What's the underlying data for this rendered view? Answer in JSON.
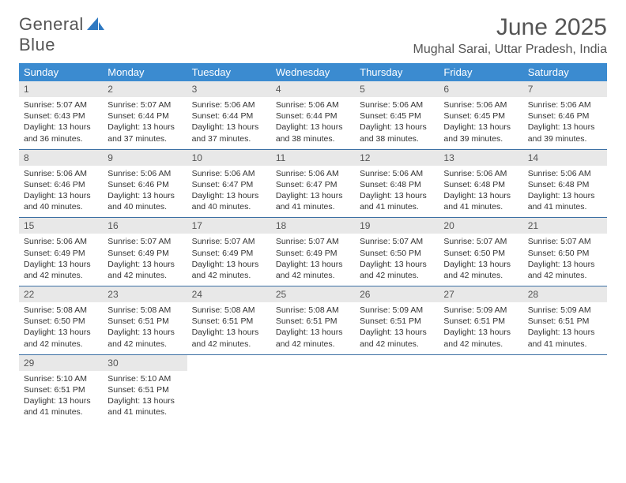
{
  "logo": {
    "text_a": "General",
    "text_b": "Blue"
  },
  "title": "June 2025",
  "location": "Mughal Sarai, Uttar Pradesh, India",
  "colors": {
    "header_bg": "#3b8bd0",
    "header_text": "#ffffff",
    "daynum_bg": "#e8e8e8",
    "row_border": "#3b6fa3",
    "text": "#333333",
    "title_text": "#555555",
    "logo_blue": "#2f79c2"
  },
  "day_names": [
    "Sunday",
    "Monday",
    "Tuesday",
    "Wednesday",
    "Thursday",
    "Friday",
    "Saturday"
  ],
  "weeks": [
    [
      {
        "n": "1",
        "sunrise": "5:07 AM",
        "sunset": "6:43 PM",
        "daylight": "13 hours and 36 minutes."
      },
      {
        "n": "2",
        "sunrise": "5:07 AM",
        "sunset": "6:44 PM",
        "daylight": "13 hours and 37 minutes."
      },
      {
        "n": "3",
        "sunrise": "5:06 AM",
        "sunset": "6:44 PM",
        "daylight": "13 hours and 37 minutes."
      },
      {
        "n": "4",
        "sunrise": "5:06 AM",
        "sunset": "6:44 PM",
        "daylight": "13 hours and 38 minutes."
      },
      {
        "n": "5",
        "sunrise": "5:06 AM",
        "sunset": "6:45 PM",
        "daylight": "13 hours and 38 minutes."
      },
      {
        "n": "6",
        "sunrise": "5:06 AM",
        "sunset": "6:45 PM",
        "daylight": "13 hours and 39 minutes."
      },
      {
        "n": "7",
        "sunrise": "5:06 AM",
        "sunset": "6:46 PM",
        "daylight": "13 hours and 39 minutes."
      }
    ],
    [
      {
        "n": "8",
        "sunrise": "5:06 AM",
        "sunset": "6:46 PM",
        "daylight": "13 hours and 40 minutes."
      },
      {
        "n": "9",
        "sunrise": "5:06 AM",
        "sunset": "6:46 PM",
        "daylight": "13 hours and 40 minutes."
      },
      {
        "n": "10",
        "sunrise": "5:06 AM",
        "sunset": "6:47 PM",
        "daylight": "13 hours and 40 minutes."
      },
      {
        "n": "11",
        "sunrise": "5:06 AM",
        "sunset": "6:47 PM",
        "daylight": "13 hours and 41 minutes."
      },
      {
        "n": "12",
        "sunrise": "5:06 AM",
        "sunset": "6:48 PM",
        "daylight": "13 hours and 41 minutes."
      },
      {
        "n": "13",
        "sunrise": "5:06 AM",
        "sunset": "6:48 PM",
        "daylight": "13 hours and 41 minutes."
      },
      {
        "n": "14",
        "sunrise": "5:06 AM",
        "sunset": "6:48 PM",
        "daylight": "13 hours and 41 minutes."
      }
    ],
    [
      {
        "n": "15",
        "sunrise": "5:06 AM",
        "sunset": "6:49 PM",
        "daylight": "13 hours and 42 minutes."
      },
      {
        "n": "16",
        "sunrise": "5:07 AM",
        "sunset": "6:49 PM",
        "daylight": "13 hours and 42 minutes."
      },
      {
        "n": "17",
        "sunrise": "5:07 AM",
        "sunset": "6:49 PM",
        "daylight": "13 hours and 42 minutes."
      },
      {
        "n": "18",
        "sunrise": "5:07 AM",
        "sunset": "6:49 PM",
        "daylight": "13 hours and 42 minutes."
      },
      {
        "n": "19",
        "sunrise": "5:07 AM",
        "sunset": "6:50 PM",
        "daylight": "13 hours and 42 minutes."
      },
      {
        "n": "20",
        "sunrise": "5:07 AM",
        "sunset": "6:50 PM",
        "daylight": "13 hours and 42 minutes."
      },
      {
        "n": "21",
        "sunrise": "5:07 AM",
        "sunset": "6:50 PM",
        "daylight": "13 hours and 42 minutes."
      }
    ],
    [
      {
        "n": "22",
        "sunrise": "5:08 AM",
        "sunset": "6:50 PM",
        "daylight": "13 hours and 42 minutes."
      },
      {
        "n": "23",
        "sunrise": "5:08 AM",
        "sunset": "6:51 PM",
        "daylight": "13 hours and 42 minutes."
      },
      {
        "n": "24",
        "sunrise": "5:08 AM",
        "sunset": "6:51 PM",
        "daylight": "13 hours and 42 minutes."
      },
      {
        "n": "25",
        "sunrise": "5:08 AM",
        "sunset": "6:51 PM",
        "daylight": "13 hours and 42 minutes."
      },
      {
        "n": "26",
        "sunrise": "5:09 AM",
        "sunset": "6:51 PM",
        "daylight": "13 hours and 42 minutes."
      },
      {
        "n": "27",
        "sunrise": "5:09 AM",
        "sunset": "6:51 PM",
        "daylight": "13 hours and 42 minutes."
      },
      {
        "n": "28",
        "sunrise": "5:09 AM",
        "sunset": "6:51 PM",
        "daylight": "13 hours and 41 minutes."
      }
    ],
    [
      {
        "n": "29",
        "sunrise": "5:10 AM",
        "sunset": "6:51 PM",
        "daylight": "13 hours and 41 minutes."
      },
      {
        "n": "30",
        "sunrise": "5:10 AM",
        "sunset": "6:51 PM",
        "daylight": "13 hours and 41 minutes."
      },
      null,
      null,
      null,
      null,
      null
    ]
  ],
  "labels": {
    "sunrise": "Sunrise:",
    "sunset": "Sunset:",
    "daylight": "Daylight:"
  }
}
